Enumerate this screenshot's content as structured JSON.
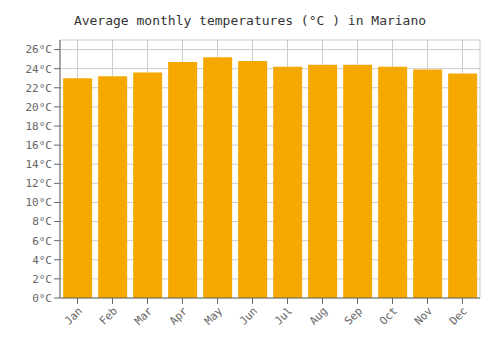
{
  "chart_data": {
    "type": "bar",
    "title": "Average monthly temperatures (°C ) in Mariano",
    "categories": [
      "Jan",
      "Feb",
      "Mar",
      "Apr",
      "May",
      "Jun",
      "Jul",
      "Aug",
      "Sep",
      "Oct",
      "Nov",
      "Dec"
    ],
    "values": [
      23.0,
      23.2,
      23.6,
      24.7,
      25.2,
      24.8,
      24.2,
      24.4,
      24.4,
      24.2,
      23.9,
      23.5
    ],
    "color": "#F5A800",
    "ylim": [
      0,
      27
    ],
    "yticks": [
      {
        "value": 0,
        "label": "0°C"
      },
      {
        "value": 2,
        "label": "2°C"
      },
      {
        "value": 4,
        "label": "4°C"
      },
      {
        "value": 6,
        "label": "6°C"
      },
      {
        "value": 8,
        "label": "8°C"
      },
      {
        "value": 10,
        "label": "10°C"
      },
      {
        "value": 12,
        "label": "12°C"
      },
      {
        "value": 14,
        "label": "14°C"
      },
      {
        "value": 16,
        "label": "16°C"
      },
      {
        "value": 18,
        "label": "18°C"
      },
      {
        "value": 20,
        "label": "20°C"
      },
      {
        "value": 22,
        "label": "22°C"
      },
      {
        "value": 24,
        "label": "24°C"
      },
      {
        "value": 26,
        "label": "26°C"
      }
    ],
    "grid": true
  }
}
